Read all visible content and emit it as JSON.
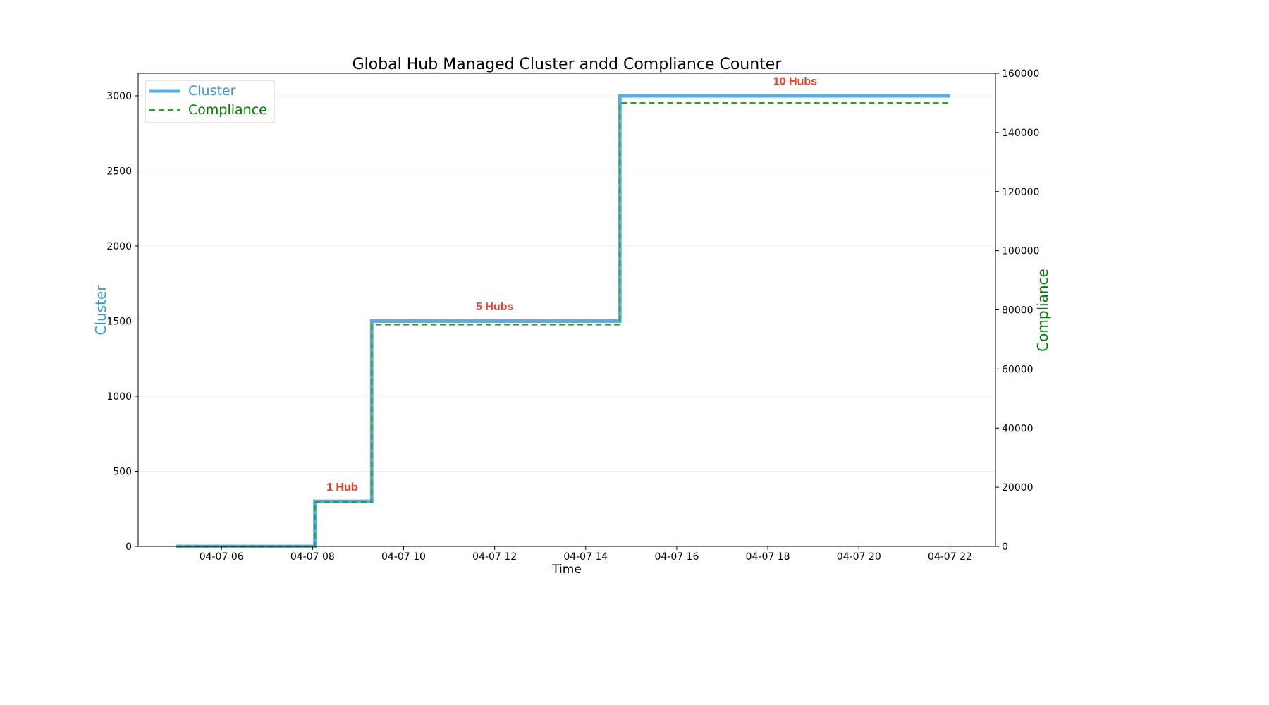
{
  "chart_data": {
    "type": "line",
    "title": "Global Hub Managed Cluster andd Compliance Counter",
    "xlabel": "Time",
    "ylabel_left": "Cluster",
    "ylabel_right": "Compliance",
    "x_tick_labels": [
      "04-07 06",
      "04-07 08",
      "04-07 10",
      "04-07 12",
      "04-07 14",
      "04-07 16",
      "04-07 18",
      "04-07 20",
      "04-07 22"
    ],
    "x_ticks_hours": [
      6,
      8,
      10,
      12,
      14,
      16,
      18,
      20,
      22
    ],
    "x_range_hours": [
      4.17,
      23.0
    ],
    "ylim_left": [
      0,
      3150
    ],
    "yticks_left": [
      0,
      500,
      1000,
      1500,
      2000,
      2500,
      3000
    ],
    "ylim_right": [
      0,
      160000
    ],
    "yticks_right": [
      0,
      20000,
      40000,
      60000,
      80000,
      100000,
      120000,
      140000,
      160000
    ],
    "grid": "horizontal",
    "legend_placement": "top-left",
    "series": [
      {
        "name": "Cluster",
        "axis": "left",
        "style": "solid",
        "color": "#5DADE2",
        "x_hours": [
          5.0,
          8.05,
          8.05,
          9.3,
          9.3,
          14.75,
          14.75,
          22.0
        ],
        "values": [
          0,
          0,
          300,
          300,
          1500,
          1500,
          3000,
          3000
        ]
      },
      {
        "name": "Compliance",
        "axis": "right",
        "style": "dashed",
        "color": "#2CA02C",
        "x_hours": [
          5.0,
          8.05,
          8.05,
          9.3,
          9.3,
          14.75,
          14.75,
          22.0
        ],
        "values": [
          0,
          0,
          15000,
          15000,
          75000,
          75000,
          150000,
          150000
        ]
      }
    ],
    "annotations": [
      {
        "text": "1 Hub",
        "x_hours": 8.65,
        "y": 400,
        "color": "#E8412C"
      },
      {
        "text": "5 Hubs",
        "x_hours": 12.0,
        "y": 1600,
        "color": "#E8412C"
      },
      {
        "text": "10 Hubs",
        "x_hours": 18.6,
        "y": 3100,
        "color": "#E8412C"
      }
    ],
    "colors": {
      "cluster_label": "#3498DB",
      "compliance_label": "#008000",
      "title": "#000000"
    }
  }
}
